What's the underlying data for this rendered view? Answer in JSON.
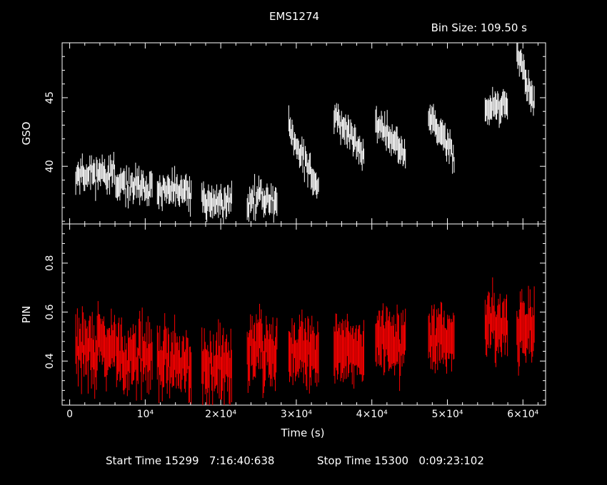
{
  "title": "EMS1274",
  "bin_size_label": "Bin Size:  109.50  s",
  "footer": {
    "start_label": "Start Time 15299   7:16:40:638",
    "stop_label": "Stop Time 15300   0:09:23:102"
  },
  "colors": {
    "background": "#000000",
    "axes": "#ffffff",
    "gso": "#ffffff",
    "pin": "#ff0000"
  },
  "chart_data": [
    {
      "type": "scatter",
      "panel": "top",
      "ylabel": "GSO",
      "xlim": [
        -1000,
        63000
      ],
      "ylim": [
        35.8,
        49.0
      ],
      "yticks": [
        40,
        45
      ],
      "yticklabels": [
        "40",
        "45"
      ],
      "error_bars": true,
      "series": [
        {
          "color": "#ffffff",
          "segments": [
            {
              "x": [
                800,
                6000
              ],
              "y": [
                39.5,
                39.5
              ],
              "scatter": 0.8
            },
            {
              "x": [
                6100,
                11000
              ],
              "y": [
                38.5,
                38.5
              ],
              "scatter": 0.8
            },
            {
              "x": [
                11600,
                16100
              ],
              "y": [
                38.1,
                38.1
              ],
              "scatter": 0.8
            },
            {
              "x": [
                17500,
                21500
              ],
              "y": [
                37.4,
                37.4
              ],
              "scatter": 0.9
            },
            {
              "x": [
                23500,
                27500
              ],
              "y": [
                37.6,
                37.6
              ],
              "scatter": 0.9
            },
            {
              "x": [
                29000,
                33000
              ],
              "y": [
                42.8,
                38.2
              ],
              "scatter": 0.8
            },
            {
              "x": [
                35000,
                39000
              ],
              "y": [
                43.8,
                40.8
              ],
              "scatter": 0.7
            },
            {
              "x": [
                40500,
                44500
              ],
              "y": [
                43.3,
                40.7
              ],
              "scatter": 0.7
            },
            {
              "x": [
                47500,
                51000
              ],
              "y": [
                43.8,
                40.7
              ],
              "scatter": 0.7
            },
            {
              "x": [
                55000,
                58000
              ],
              "y": [
                44.2,
                44.6
              ],
              "scatter": 0.7
            },
            {
              "x": [
                59200,
                61500
              ],
              "y": [
                48.0,
                44.6
              ],
              "scatter": 0.8
            }
          ]
        }
      ]
    },
    {
      "type": "scatter",
      "panel": "bottom",
      "ylabel": "PIN",
      "xlabel": "Time (s)",
      "xlim": [
        -1000,
        63000
      ],
      "ylim": [
        0.22,
        0.96
      ],
      "yticks": [
        0.4,
        0.6,
        0.8
      ],
      "yticklabels": [
        "0.4",
        "0.6",
        "0.8"
      ],
      "xticks": [
        0,
        10000,
        20000,
        30000,
        40000,
        50000,
        60000
      ],
      "xticklabels": [
        "0",
        "10⁴",
        "2×10⁴",
        "3×10⁴",
        "4×10⁴",
        "5×10⁴",
        "6×10⁴"
      ],
      "error_bars": true,
      "series": [
        {
          "color": "#ff0000",
          "segments": [
            {
              "x": [
                800,
                6000
              ],
              "y": [
                0.45,
                0.45
              ],
              "scatter": 0.08
            },
            {
              "x": [
                6100,
                11000
              ],
              "y": [
                0.42,
                0.42
              ],
              "scatter": 0.08
            },
            {
              "x": [
                11600,
                16100
              ],
              "y": [
                0.4,
                0.4
              ],
              "scatter": 0.08
            },
            {
              "x": [
                17500,
                21500
              ],
              "y": [
                0.38,
                0.38
              ],
              "scatter": 0.09
            },
            {
              "x": [
                23500,
                27500
              ],
              "y": [
                0.46,
                0.46
              ],
              "scatter": 0.09
            },
            {
              "x": [
                29000,
                33000
              ],
              "y": [
                0.44,
                0.44
              ],
              "scatter": 0.08
            },
            {
              "x": [
                35000,
                39000
              ],
              "y": [
                0.44,
                0.44
              ],
              "scatter": 0.07
            },
            {
              "x": [
                40500,
                44500
              ],
              "y": [
                0.48,
                0.48
              ],
              "scatter": 0.07
            },
            {
              "x": [
                47500,
                51000
              ],
              "y": [
                0.49,
                0.49
              ],
              "scatter": 0.07
            },
            {
              "x": [
                55000,
                58000
              ],
              "y": [
                0.55,
                0.55
              ],
              "scatter": 0.08
            },
            {
              "x": [
                59200,
                61500
              ],
              "y": [
                0.52,
                0.52
              ],
              "scatter": 0.09
            }
          ]
        }
      ]
    }
  ]
}
